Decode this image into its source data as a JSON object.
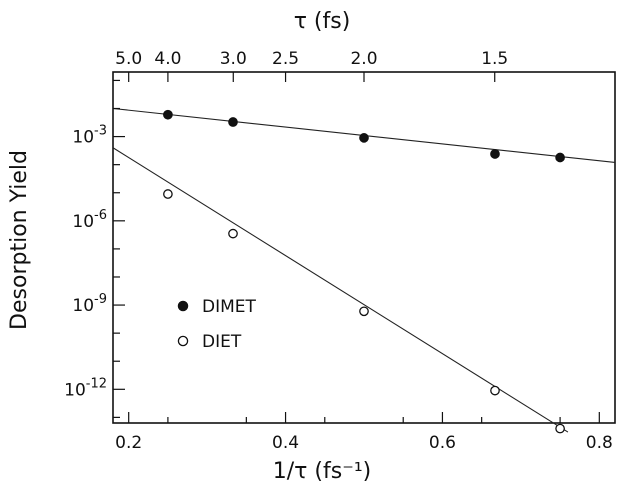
{
  "chart_data": {
    "type": "scatter",
    "xlabel": "1/τ (fs⁻¹)",
    "x_top_label": "τ (fs)",
    "ylabel": "Desorption Yield",
    "xlim": [
      0.18,
      0.82
    ],
    "ylim_log10": [
      -13.2,
      -0.7
    ],
    "y_scale": "log",
    "x_ticks": [
      "0.2",
      "0.4",
      "0.6",
      "0.8"
    ],
    "x_tick_values": [
      0.2,
      0.4,
      0.6,
      0.8
    ],
    "top_ticks": [
      {
        "label": "5.0",
        "tau": 5.0
      },
      {
        "label": "4.0",
        "tau": 4.0
      },
      {
        "label": "3.0",
        "tau": 3.0
      },
      {
        "label": "2.5",
        "tau": 2.5
      },
      {
        "label": "2.0",
        "tau": 2.0
      },
      {
        "label": "1.5",
        "tau": 1.5
      }
    ],
    "y_ticks": [
      {
        "base": "10",
        "exp": "-3",
        "log10": -3
      },
      {
        "base": "10",
        "exp": "-6",
        "log10": -6
      },
      {
        "base": "10",
        "exp": "-9",
        "log10": -9
      },
      {
        "base": "10",
        "exp": "-12",
        "log10": -12
      }
    ],
    "legend_position": "left-center",
    "series": [
      {
        "name": "DIMET",
        "marker": "filled-circle",
        "x": [
          0.25,
          0.333,
          0.5,
          0.667,
          0.75
        ],
        "y": [
          0.006,
          0.0033,
          0.0009,
          0.00024,
          0.00018
        ],
        "fit": {
          "x": [
            0.18,
            0.82
          ],
          "y": [
            0.01,
            0.00012
          ]
        }
      },
      {
        "name": "DIET",
        "marker": "open-circle",
        "x": [
          0.25,
          0.333,
          0.5,
          0.667,
          0.75
        ],
        "y": [
          9e-06,
          3.5e-07,
          6e-10,
          9e-13,
          4e-14
        ],
        "fit": {
          "x": [
            0.18,
            0.76
          ],
          "y": [
            0.0004,
            3e-14
          ]
        }
      }
    ]
  }
}
